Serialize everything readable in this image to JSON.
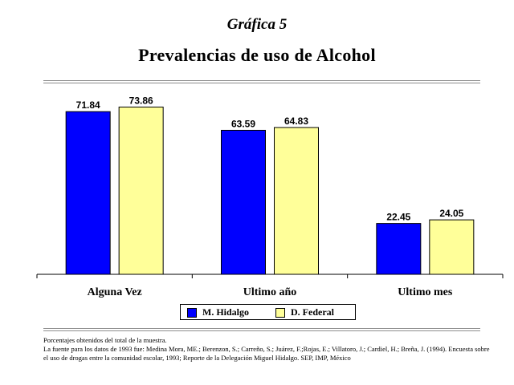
{
  "header_label": "Gráfica 5",
  "chart_data": {
    "type": "bar",
    "title": "Prevalencias de uso de Alcohol",
    "xlabel": "",
    "ylabel": "",
    "categories": [
      "Alguna Vez",
      "Ultimo año",
      "Ultimo mes"
    ],
    "series": [
      {
        "name": "M. Hidalgo",
        "color": "#0000ff",
        "values": [
          71.84,
          63.59,
          22.45
        ],
        "labels": [
          "71.84",
          "63.59",
          "22.45"
        ]
      },
      {
        "name": "D. Federal",
        "color": "#ffff99",
        "values": [
          73.86,
          64.83,
          24.05
        ],
        "labels": [
          "73.86",
          "64.83",
          "24.05"
        ]
      }
    ],
    "ylim": [
      0,
      85
    ],
    "grid": false,
    "legend_position": "bottom"
  },
  "notes": {
    "line1": "Porcentajes obtenidos del total de la muestra.",
    "line2": "La fuente para los datos de 1993 fue: Medina Mora, ME.; Berenzon, S.; Carreño, S.; Juárez, F.;Rojas, E.; Villatoro, J.; Cardiel, H.; Breña, J. (1994). Encuesta sobre el uso de drogas entre la comunidad escolar, 1993; Reporte de la Delegación Miguel Hidalgo. SEP, IMP, México"
  }
}
